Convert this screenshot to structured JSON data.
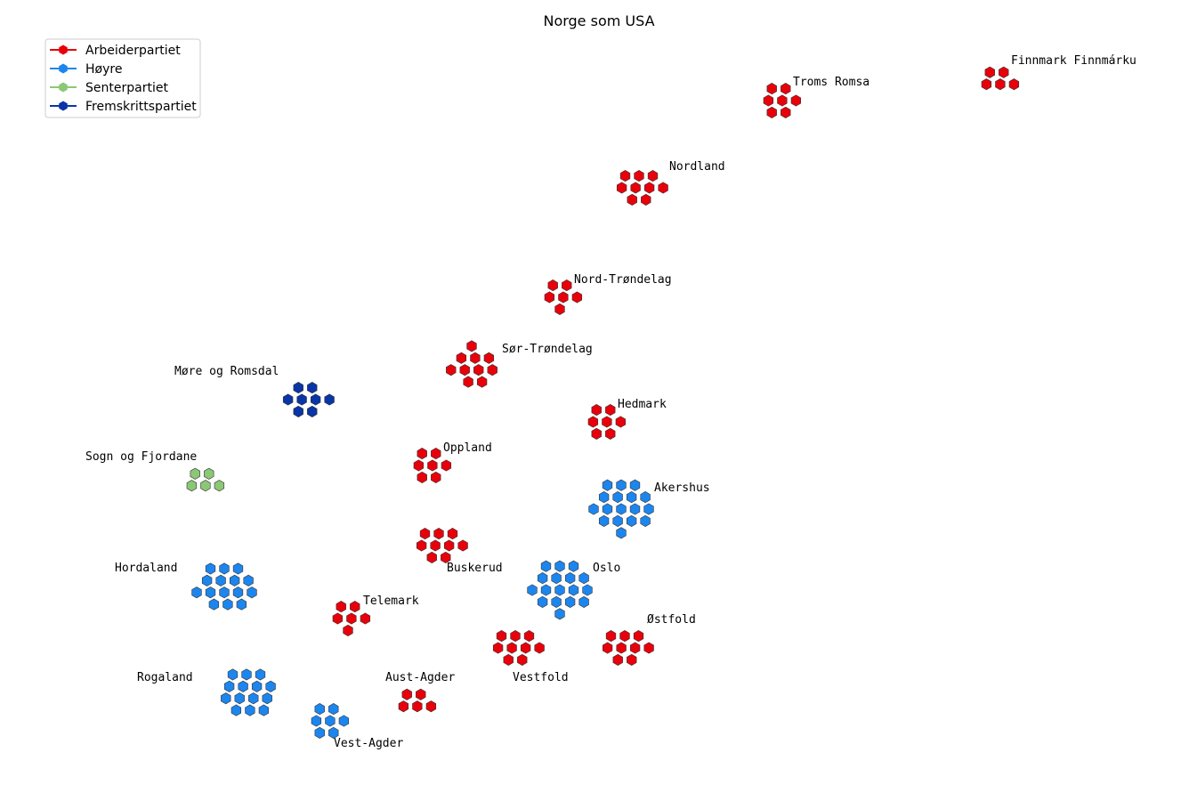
{
  "chart_data": {
    "type": "scatter",
    "title": "Norge som USA",
    "legend": {
      "placement": "top-left",
      "entries": [
        {
          "party": "arbeiderpartiet",
          "label": "Arbeiderpartiet",
          "color": "#e8000b"
        },
        {
          "party": "hoyre",
          "label": "Høyre",
          "color": "#1c86ee"
        },
        {
          "party": "senterpartiet",
          "label": "Senterpartiet",
          "color": "#8bc876"
        },
        {
          "party": "fremskrittspartiet",
          "label": "Fremskrittspartiet",
          "color": "#0a35a6"
        }
      ]
    },
    "counties": [
      {
        "name": "Finnmark Finnmárku",
        "party": "arbeiderpartiet",
        "seats": 5
      },
      {
        "name": "Troms Romsa",
        "party": "arbeiderpartiet",
        "seats": 7
      },
      {
        "name": "Nordland",
        "party": "arbeiderpartiet",
        "seats": 9
      },
      {
        "name": "Nord-Trøndelag",
        "party": "arbeiderpartiet",
        "seats": 6
      },
      {
        "name": "Sør-Trøndelag",
        "party": "arbeiderpartiet",
        "seats": 10
      },
      {
        "name": "Møre og Romsdal",
        "party": "fremskrittspartiet",
        "seats": 8
      },
      {
        "name": "Hedmark",
        "party": "arbeiderpartiet",
        "seats": 7
      },
      {
        "name": "Sogn og Fjordane",
        "party": "senterpartiet",
        "seats": 5
      },
      {
        "name": "Oppland",
        "party": "arbeiderpartiet",
        "seats": 7
      },
      {
        "name": "Akershus",
        "party": "hoyre",
        "seats": 17
      },
      {
        "name": "Buskerud",
        "party": "arbeiderpartiet",
        "seats": 9
      },
      {
        "name": "Hordaland",
        "party": "hoyre",
        "seats": 15
      },
      {
        "name": "Oslo",
        "party": "hoyre",
        "seats": 17
      },
      {
        "name": "Telemark",
        "party": "arbeiderpartiet",
        "seats": 6
      },
      {
        "name": "Østfold",
        "party": "arbeiderpartiet",
        "seats": 9
      },
      {
        "name": "Vestfold",
        "party": "arbeiderpartiet",
        "seats": 9
      },
      {
        "name": "Rogaland",
        "party": "hoyre",
        "seats": 14
      },
      {
        "name": "Aust-Agder",
        "party": "arbeiderpartiet",
        "seats": 5
      },
      {
        "name": "Vest-Agder",
        "party": "hoyre",
        "seats": 7
      }
    ]
  }
}
